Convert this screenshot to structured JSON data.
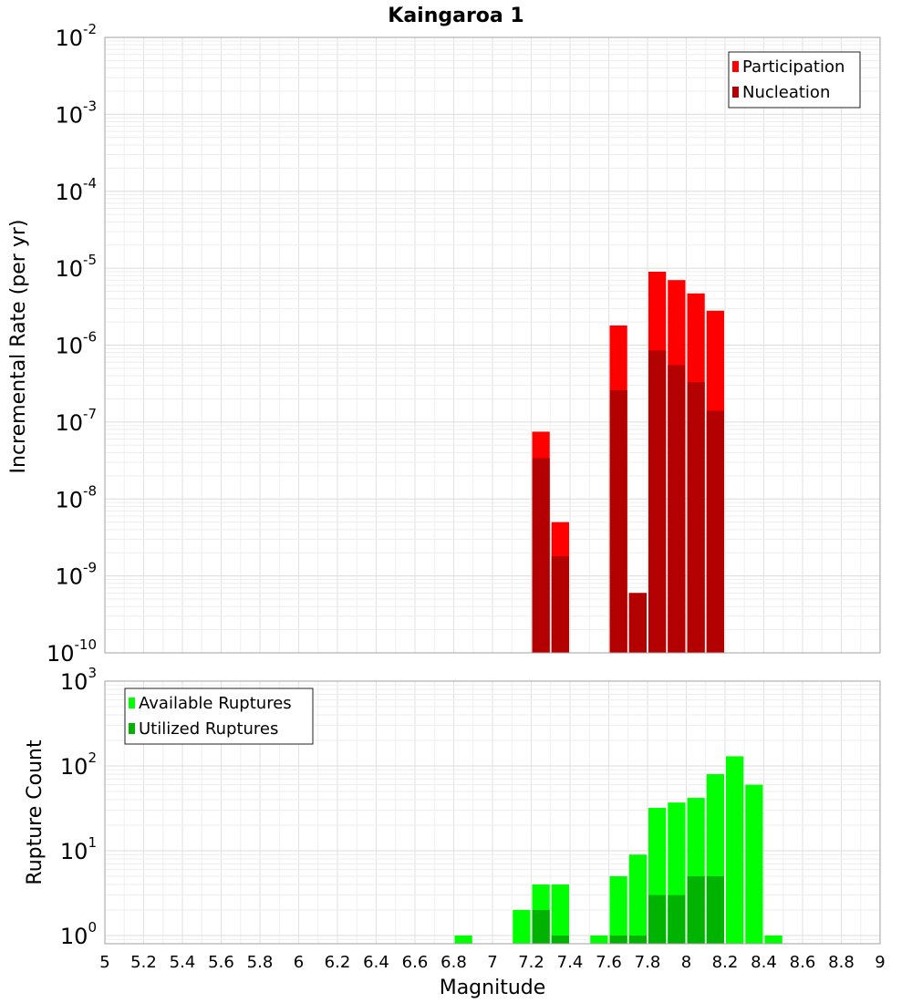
{
  "chart_data": [
    {
      "type": "bar",
      "title": "Kaingaroa 1",
      "ylabel": "Incremental Rate (per yr)",
      "xlabel": "",
      "yscale": "log",
      "ylim": [
        1e-10,
        0.01
      ],
      "xlim": [
        5,
        9
      ],
      "grid": true,
      "legend_position": "top-right",
      "bin_width": 0.1,
      "yticks": [
        {
          "base": "10",
          "exp": "-10",
          "value": 1e-10
        },
        {
          "base": "10",
          "exp": "-9",
          "value": 1e-09
        },
        {
          "base": "10",
          "exp": "-8",
          "value": 1e-08
        },
        {
          "base": "10",
          "exp": "-7",
          "value": 1e-07
        },
        {
          "base": "10",
          "exp": "-6",
          "value": 1e-06
        },
        {
          "base": "10",
          "exp": "-5",
          "value": 1e-05
        },
        {
          "base": "10",
          "exp": "-4",
          "value": 0.0001
        },
        {
          "base": "10",
          "exp": "-3",
          "value": 0.001
        },
        {
          "base": "10",
          "exp": "-2",
          "value": 0.01
        }
      ],
      "x": [
        7.25,
        7.35,
        7.65,
        7.75,
        7.85,
        7.95,
        8.05,
        8.15
      ],
      "series": [
        {
          "name": "Participation",
          "color": "#ff0000",
          "values": [
            7.5e-08,
            5e-09,
            1.8e-06,
            6e-10,
            9e-06,
            7e-06,
            4.7e-06,
            2.8e-06
          ]
        },
        {
          "name": "Nucleation",
          "color": "#b30000",
          "values": [
            3.4e-08,
            1.8e-09,
            2.6e-07,
            6e-10,
            8.5e-07,
            5.5e-07,
            3.3e-07,
            1.4e-07
          ]
        }
      ]
    },
    {
      "type": "bar",
      "title": "",
      "ylabel": "Rupture Count",
      "xlabel": "Magnitude",
      "yscale": "log",
      "ylim": [
        0.8,
        1000
      ],
      "xlim": [
        5,
        9
      ],
      "grid": true,
      "legend_position": "top-left",
      "bin_width": 0.1,
      "yticks": [
        {
          "base": "10",
          "exp": "0",
          "value": 1
        },
        {
          "base": "10",
          "exp": "1",
          "value": 10
        },
        {
          "base": "10",
          "exp": "2",
          "value": 100
        },
        {
          "base": "10",
          "exp": "3",
          "value": 1000
        }
      ],
      "xticks": [
        "5",
        "5.2",
        "5.4",
        "5.6",
        "5.8",
        "6",
        "6.2",
        "6.4",
        "6.6",
        "6.8",
        "7",
        "7.2",
        "7.4",
        "7.6",
        "7.8",
        "8",
        "8.2",
        "8.4",
        "8.6",
        "8.8",
        "9"
      ],
      "x": [
        6.85,
        7.15,
        7.25,
        7.35,
        7.55,
        7.65,
        7.75,
        7.85,
        7.95,
        8.05,
        8.15,
        8.25,
        8.35,
        8.45
      ],
      "series": [
        {
          "name": "Available Ruptures",
          "color": "#00ff00",
          "values": [
            1,
            2,
            4,
            4,
            1,
            5,
            9,
            32,
            37,
            42,
            80,
            130,
            60,
            1
          ]
        },
        {
          "name": "Utilized Ruptures",
          "color": "#00b300",
          "values": [
            null,
            null,
            2,
            1,
            null,
            1,
            1,
            3,
            3,
            5,
            5,
            null,
            null,
            null
          ]
        }
      ]
    }
  ]
}
